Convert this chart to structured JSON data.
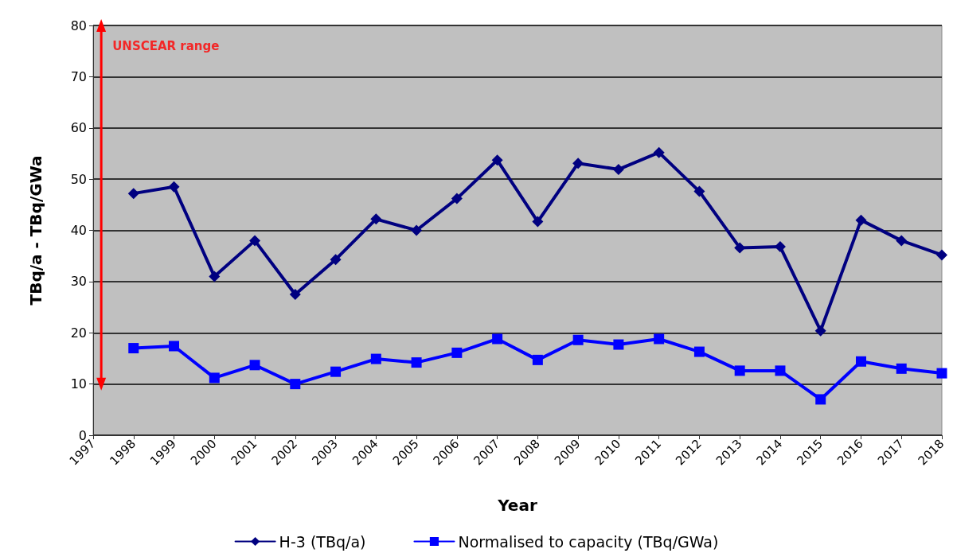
{
  "chart_data": {
    "type": "line",
    "xlabel": "Year",
    "ylabel": "TBq/a - TBq/GWa",
    "x": [
      1998,
      1999,
      2000,
      2001,
      2002,
      2003,
      2004,
      2005,
      2006,
      2007,
      2008,
      2009,
      2010,
      2011,
      2012,
      2013,
      2014,
      2015,
      2016,
      2017,
      2018
    ],
    "series": [
      {
        "name": "H-3 (TBq/a)",
        "color": "#000080",
        "marker": "diamond",
        "values": [
          47.2,
          48.5,
          31,
          38,
          27.5,
          34.3,
          42.2,
          40,
          46.2,
          53.7,
          41.7,
          53.1,
          51.9,
          55.2,
          47.6,
          36.6,
          36.8,
          20.4,
          42,
          38,
          35.2
        ]
      },
      {
        "name": "Normalised to capacity (TBq/GWa)",
        "color": "#0000ff",
        "marker": "square",
        "values": [
          17,
          17.4,
          11.2,
          13.7,
          10,
          12.4,
          14.9,
          14.2,
          16.1,
          18.8,
          14.7,
          18.6,
          17.7,
          18.8,
          16.3,
          12.6,
          12.6,
          7,
          14.4,
          13,
          12.1
        ]
      },
      {
        "color": "#ff0000",
        "marker": "triangle",
        "x": [
          1997.2,
          1997.2
        ],
        "values": [
          10,
          80
        ]
      }
    ],
    "annotations": [
      {
        "text": "UNSCEAR range",
        "x": 1997.2,
        "y": 80
      }
    ],
    "xlim": [
      1997,
      2018
    ],
    "xticks": [
      1997,
      1998,
      1999,
      2000,
      2001,
      2002,
      2003,
      2004,
      2005,
      2006,
      2007,
      2008,
      2009,
      2010,
      2011,
      2012,
      2013,
      2014,
      2015,
      2016,
      2017,
      2018
    ],
    "ylim": [
      0,
      80
    ],
    "yticks": [
      0,
      10,
      20,
      30,
      40,
      50,
      60,
      70,
      80
    ],
    "grid": "y",
    "legend": "bottom",
    "line_style": "solid"
  }
}
